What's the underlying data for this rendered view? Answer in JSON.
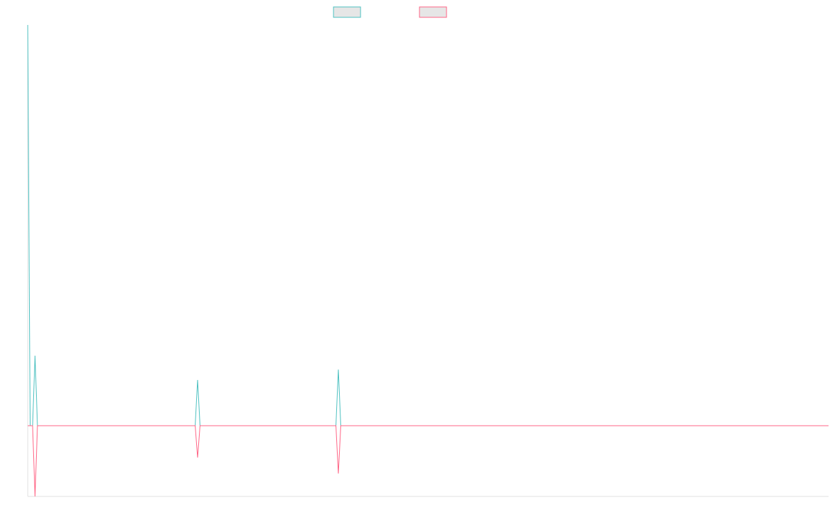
{
  "chart_data": {
    "type": "line",
    "xlim": [
      0,
      330
    ],
    "ylim": [
      -102,
      578
    ],
    "series": [
      {
        "color": "#4bc0c0",
        "x": [
          0,
          1,
          2,
          3,
          4,
          69,
          70,
          71,
          127,
          128,
          129,
          330
        ],
        "values": [
          578,
          0,
          0,
          101,
          0,
          0,
          66,
          0,
          0,
          81,
          0,
          0
        ]
      },
      {
        "color": "#ff6384",
        "x": [
          0,
          2,
          3,
          4,
          69,
          70,
          71,
          127,
          128,
          129,
          330
        ],
        "values": [
          0,
          0,
          -102,
          0,
          0,
          -46,
          0,
          0,
          -69,
          0,
          0
        ]
      }
    ]
  }
}
